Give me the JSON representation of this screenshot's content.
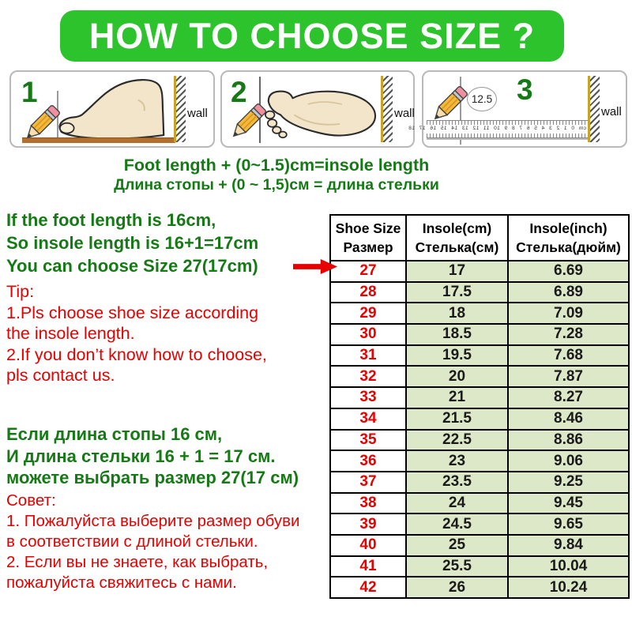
{
  "banner": {
    "title": "HOW TO CHOOSE SIZE ?"
  },
  "steps": {
    "step1": {
      "number": "1",
      "wall": "wall"
    },
    "step2": {
      "number": "2",
      "wall": "wall"
    },
    "step3": {
      "number": "3",
      "wall": "wall",
      "reading": "12.5",
      "ruler_numbers": "cm 0 1 2 3 4 5 6 7 8 9 10 11 12 13 14 15 16 17 18"
    }
  },
  "formula": {
    "en": "Foot length + (0~1.5)cm=insole length",
    "ru": "Длина стопы + (0 ~ 1,5)см = длина стельки"
  },
  "guide_en": {
    "lines_green": [
      "If the foot length is 16cm,",
      "So insole length is 16+1=17cm",
      "You can choose Size 27(17cm)"
    ],
    "tip_label": "Tip:",
    "lines_red": [
      "1.Pls choose shoe size according",
      " the insole length.",
      "2.If you don’t know how to choose,",
      "pls contact us."
    ]
  },
  "guide_ru": {
    "lines_green": [
      "Если длина стопы 16 см,",
      "И длина стельки 16 + 1 = 17 см.",
      "можете выбрать размер 27(17 см)"
    ],
    "tip_label": "Совет:",
    "lines_red": [
      "1. Пожалуйста выберите размер обуви",
      "в соответствии с длиной стельки.",
      "2. Если вы не знаете, как выбрать,",
      "пожалуйста свяжитесь с нами."
    ]
  },
  "size_table": {
    "col1": {
      "line1": "Shoe Size",
      "line2": "Размер"
    },
    "col2": {
      "line1": "Insole(cm)",
      "line2": "Стелька(см)"
    },
    "col3": {
      "line1": "Insole(inch)",
      "line2": "Стелька(дюйм)"
    },
    "rows": [
      [
        "27",
        "17",
        "6.69"
      ],
      [
        "28",
        "17.5",
        "6.89"
      ],
      [
        "29",
        "18",
        "7.09"
      ],
      [
        "30",
        "18.5",
        "7.28"
      ],
      [
        "31",
        "19.5",
        "7.68"
      ],
      [
        "32",
        "20",
        "7.87"
      ],
      [
        "33",
        "21",
        "8.27"
      ],
      [
        "34",
        "21.5",
        "8.46"
      ],
      [
        "35",
        "22.5",
        "8.86"
      ],
      [
        "36",
        "23",
        "9.06"
      ],
      [
        "37",
        "23.5",
        "9.25"
      ],
      [
        "38",
        "24",
        "9.45"
      ],
      [
        "39",
        "24.5",
        "9.65"
      ],
      [
        "40",
        "25",
        "9.84"
      ],
      [
        "41",
        "25.5",
        "10.04"
      ],
      [
        "42",
        "26",
        "10.24"
      ]
    ]
  },
  "colors": {
    "banner_green": "#2cc32c",
    "text_green": "#157a15",
    "text_red": "#e60000",
    "cell_green": "#dde8c9",
    "wall_yellow": "#c9a227",
    "floor_brown": "#b2702c"
  }
}
